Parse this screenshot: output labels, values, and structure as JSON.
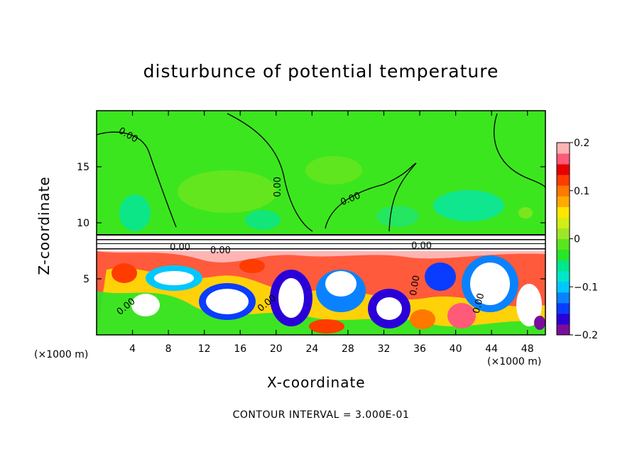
{
  "chart_data": {
    "type": "heatmap",
    "title": "disturbunce of potential temperature",
    "xlabel": "X-coordinate",
    "ylabel": "Z-coordinate",
    "x_unit": "(×1000 m)",
    "xlim": [
      0,
      50
    ],
    "ylim": [
      0,
      20
    ],
    "x_ticks": [
      "4",
      "8",
      "12",
      "16",
      "20",
      "24",
      "28",
      "32",
      "36",
      "40",
      "44",
      "48"
    ],
    "y_ticks": [
      "5",
      "10",
      "15"
    ],
    "colorbar": {
      "range": [
        -0.2,
        0.2
      ],
      "tick_labels": [
        "0.2",
        "0.1",
        "0",
        "−0.1",
        "−0.2"
      ],
      "colors": [
        "#7a0d9c",
        "#2a00d8",
        "#0a3cff",
        "#0a82ff",
        "#00c8ff",
        "#00e6c8",
        "#00e68c",
        "#28e628",
        "#5ae61e",
        "#a0e628",
        "#d2ee14",
        "#ffe600",
        "#ffaa00",
        "#ff7800",
        "#ff3c00",
        "#e60000",
        "#ff5a78",
        "#ffb4b4"
      ]
    },
    "contour_labels": [
      {
        "text": "0.00",
        "x": 3.5,
        "z": 17.8,
        "angle": 30
      },
      {
        "text": "0.00",
        "x": 20.2,
        "z": 13.2,
        "angle": -90
      },
      {
        "text": "0.00",
        "x": 28.3,
        "z": 12.1,
        "angle": -22
      },
      {
        "text": "0.00",
        "x": 9.3,
        "z": 7.8,
        "angle": 0
      },
      {
        "text": "0.00",
        "x": 13.8,
        "z": 7.5,
        "angle": 0
      },
      {
        "text": "0.00",
        "x": 36.2,
        "z": 7.9,
        "angle": 0
      },
      {
        "text": "0.00",
        "x": 35.5,
        "z": 4.4,
        "angle": -80
      },
      {
        "text": "0.00",
        "x": 19.0,
        "z": 2.8,
        "angle": -40
      },
      {
        "text": "0.00",
        "x": 3.3,
        "z": 2.5,
        "angle": -40
      },
      {
        "text": "0.00",
        "x": 42.6,
        "z": 2.8,
        "angle": -75
      }
    ]
  },
  "footer": "CONTOUR INTERVAL = 3.000E-01"
}
